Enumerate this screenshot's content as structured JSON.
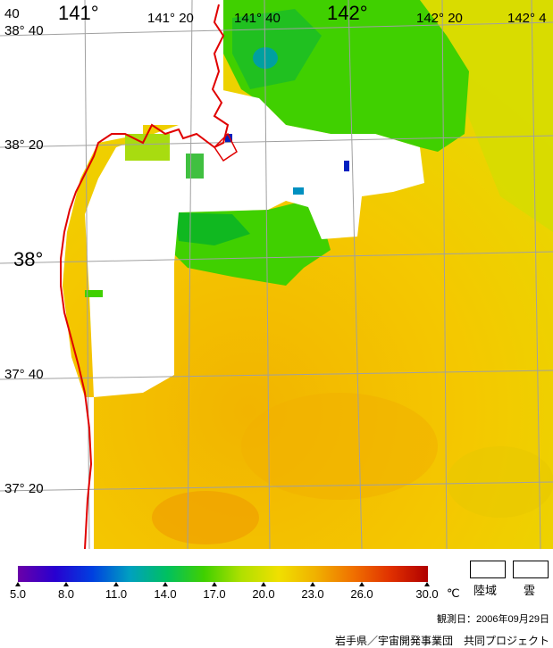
{
  "map": {
    "lon_labels_top": [
      "141°",
      "141° 20",
      "141° 40",
      "142°",
      "142° 20",
      "142° 4"
    ],
    "lat_labels": [
      "38° 40",
      "38° 20",
      "38°",
      "37° 40",
      "37° 20"
    ],
    "corner_label": "40"
  },
  "colorbar": {
    "ticks": [
      "5.0",
      "8.0",
      "11.0",
      "14.0",
      "17.0",
      "20.0",
      "23.0",
      "26.0",
      "30.0"
    ],
    "unit": "℃",
    "stops": [
      "#6a00a8",
      "#2800d0",
      "#0040e0",
      "#00a0c0",
      "#00c060",
      "#40d000",
      "#b0e000",
      "#f0e000",
      "#f0b000",
      "#f07000",
      "#e03000",
      "#b00000"
    ]
  },
  "legend": {
    "land_label": "陸域",
    "cloud_label": "雲"
  },
  "footer": {
    "observation_date": "観測日：2006年09月29日",
    "credit": "岩手県／宇宙開発事業団　共同プロジェクト"
  },
  "colors": {
    "sea_warm": "#f0c800",
    "sea_green": "#40d000",
    "coastline": "#e00000",
    "grid": "#a0a0a0"
  }
}
